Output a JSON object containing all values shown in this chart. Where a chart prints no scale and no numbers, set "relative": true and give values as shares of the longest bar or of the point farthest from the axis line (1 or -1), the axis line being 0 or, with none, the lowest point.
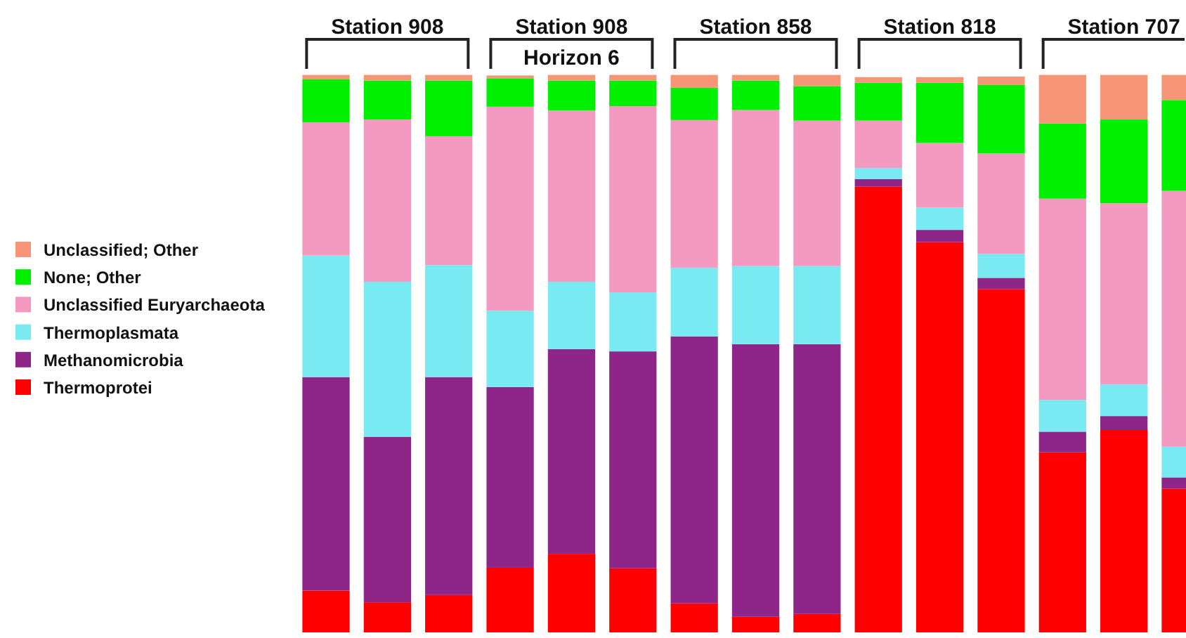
{
  "chart_data": {
    "type": "bar",
    "stacked": true,
    "relative": true,
    "legend": "left",
    "categories": [
      null,
      null,
      null,
      null,
      null,
      null,
      null,
      null,
      null,
      null,
      null,
      null,
      null,
      null,
      null
    ],
    "series": [
      {
        "name": "Thermoprotei",
        "color": "#ff0000",
        "values": [
          0.075,
          0.054,
          0.067,
          0.116,
          0.141,
          0.115,
          0.052,
          0.028,
          0.033,
          0.8,
          0.7,
          0.616,
          0.323,
          0.363,
          0.258
        ]
      },
      {
        "name": "Methanomicrobia",
        "color": "#8e2589",
        "values": [
          0.383,
          0.297,
          0.391,
          0.324,
          0.367,
          0.389,
          0.479,
          0.489,
          0.484,
          0.013,
          0.022,
          0.02,
          0.037,
          0.025,
          0.02
        ]
      },
      {
        "name": "Thermoplasmata",
        "color": "#7aeaf2",
        "values": [
          0.218,
          0.278,
          0.201,
          0.137,
          0.121,
          0.106,
          0.123,
          0.14,
          0.14,
          0.02,
          0.04,
          0.043,
          0.057,
          0.057,
          0.055
        ]
      },
      {
        "name": "Unclassified Euryarchaeota",
        "color": "#f49ac1",
        "values": [
          0.239,
          0.291,
          0.231,
          0.366,
          0.307,
          0.334,
          0.265,
          0.28,
          0.261,
          0.085,
          0.116,
          0.18,
          0.361,
          0.325,
          0.459
        ]
      },
      {
        "name": "None; Other",
        "color": "#00f000",
        "values": [
          0.077,
          0.07,
          0.1,
          0.051,
          0.054,
          0.046,
          0.058,
          0.053,
          0.062,
          0.068,
          0.108,
          0.123,
          0.135,
          0.15,
          0.163
        ]
      },
      {
        "name": "Unclassified; Other",
        "color": "#f79677",
        "values": [
          0.008,
          0.01,
          0.01,
          0.005,
          0.01,
          0.01,
          0.023,
          0.01,
          0.02,
          0.01,
          0.01,
          0.015,
          0.087,
          0.08,
          0.045
        ]
      }
    ],
    "annotations": [
      "Station 908",
      "Station 908\nHorizon 6",
      "Station 858",
      "Station 818",
      "Station 707"
    ]
  }
}
